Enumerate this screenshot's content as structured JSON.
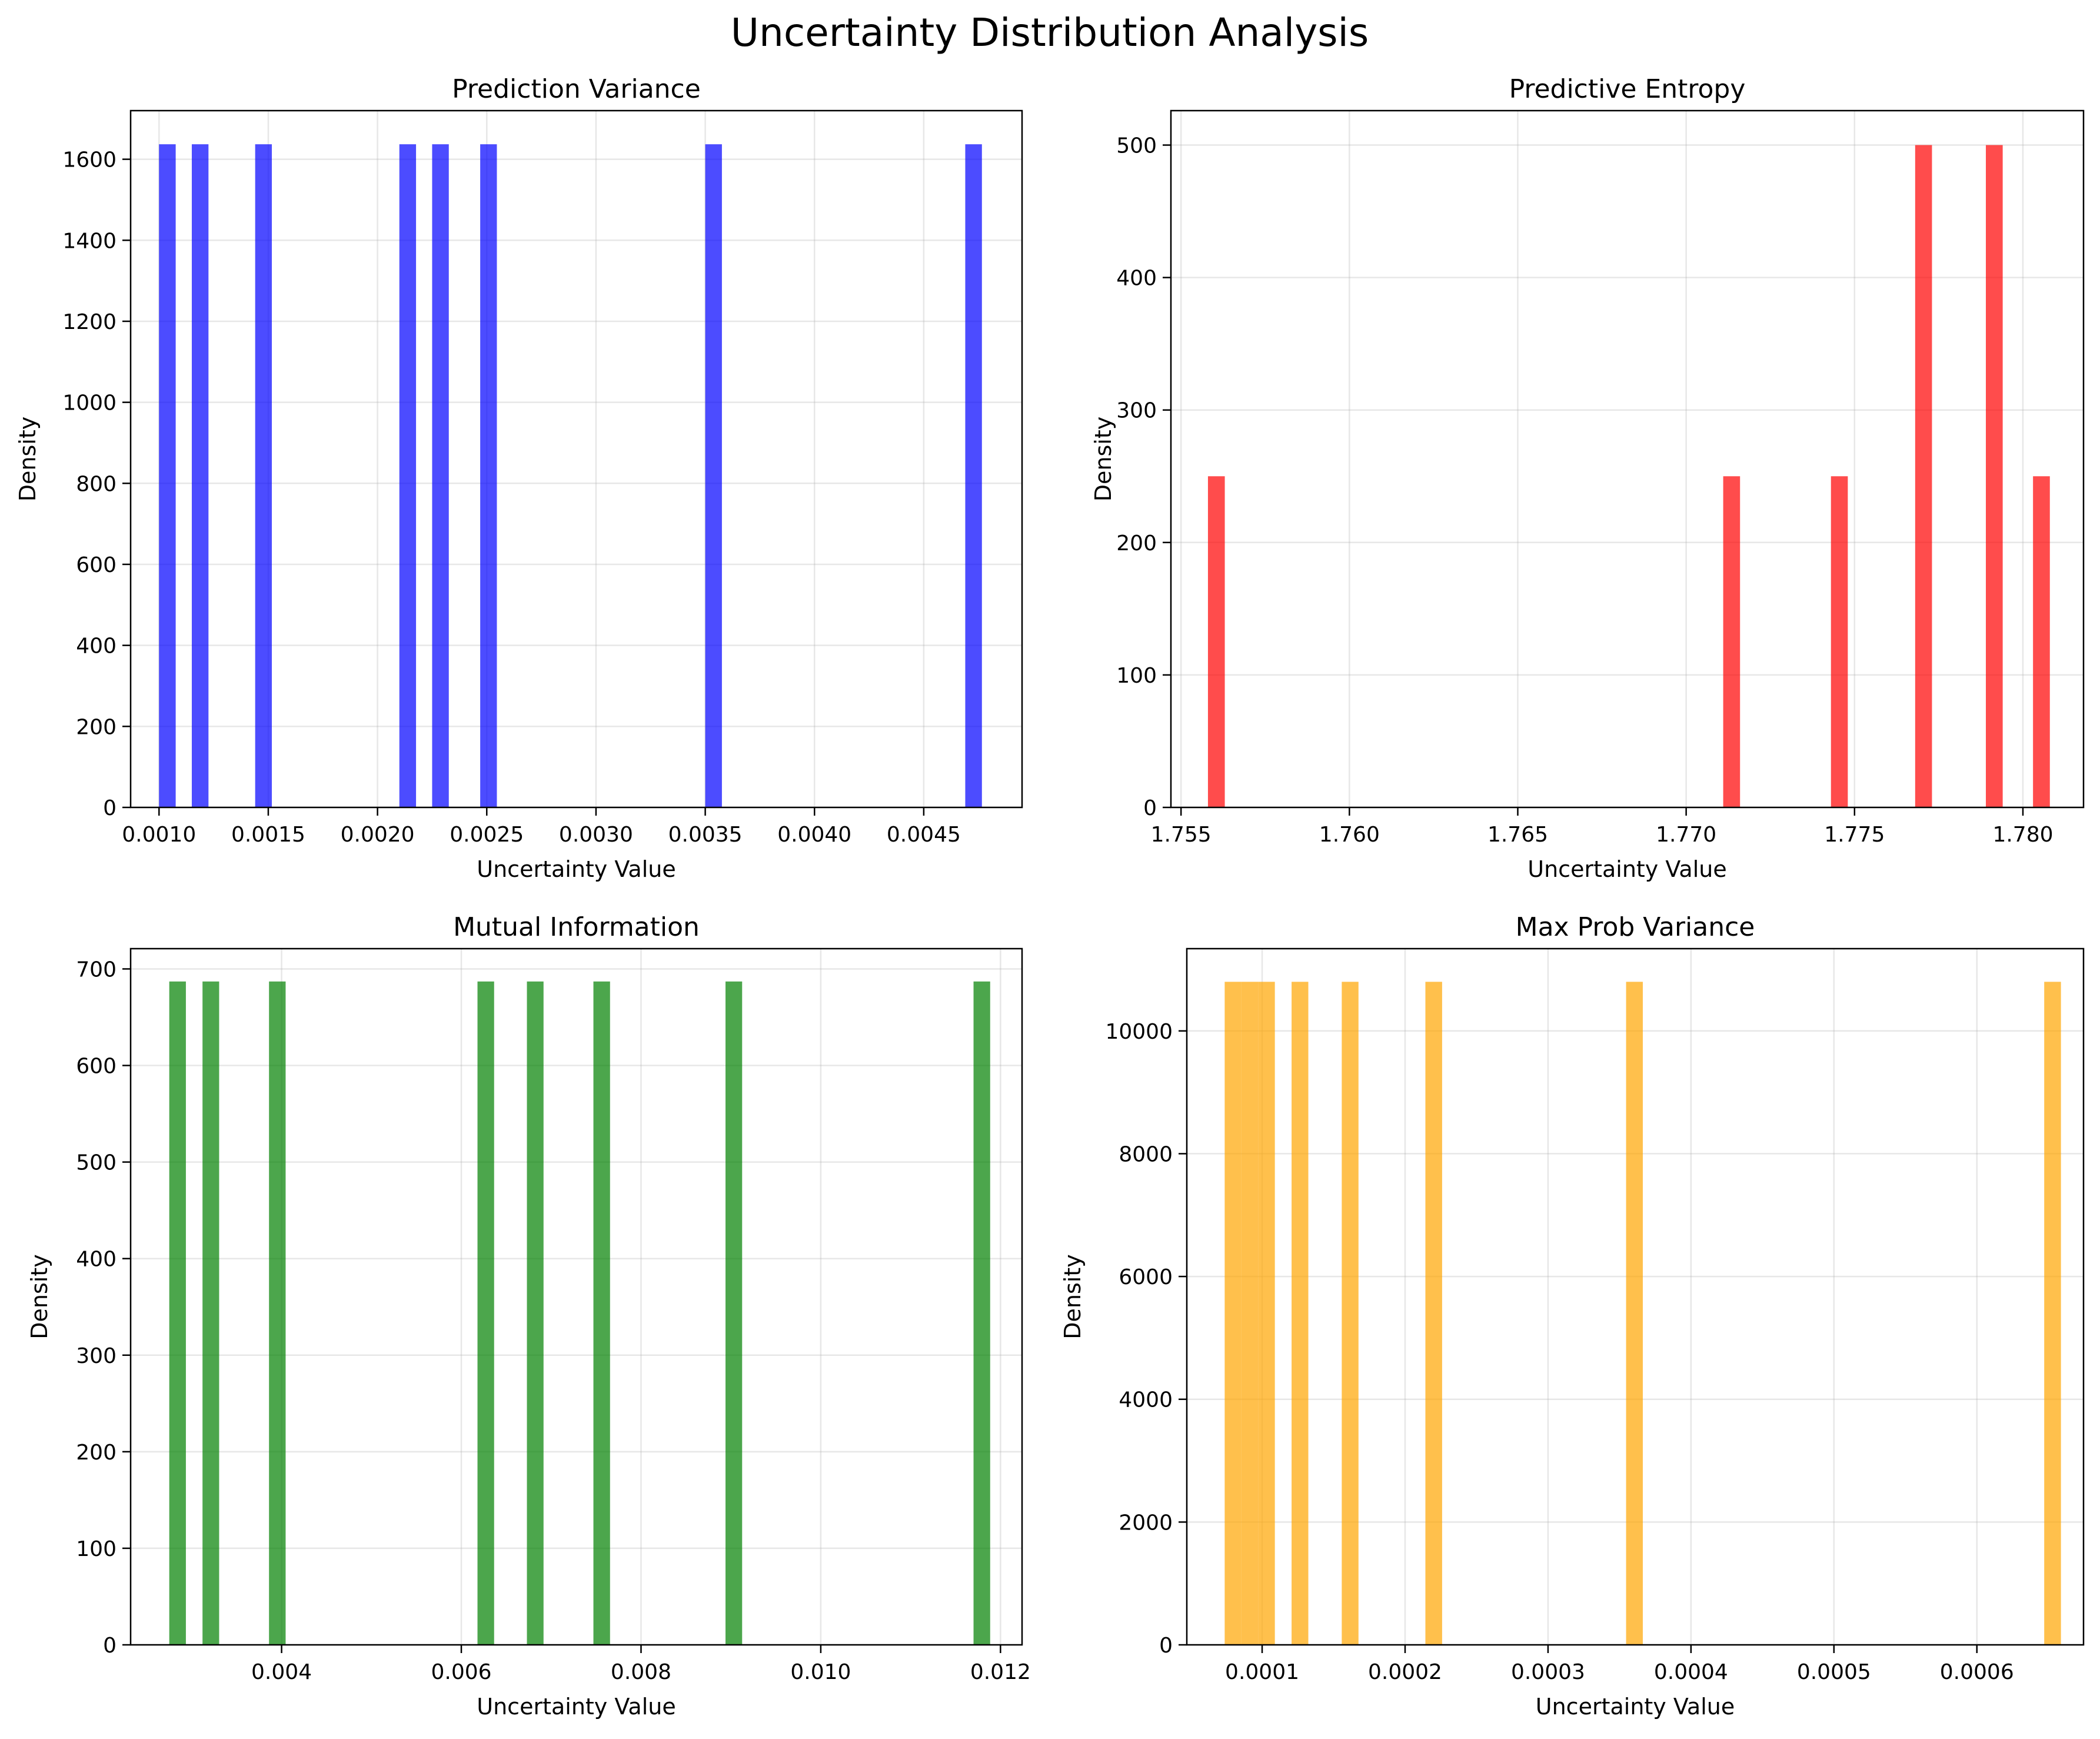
{
  "figure": {
    "suptitle": "Uncertainty Distribution Analysis"
  },
  "chart_data": [
    {
      "type": "bar",
      "title": "Prediction Variance",
      "xlabel": "Uncertainty Value",
      "ylabel": "Density",
      "color": "#0000ff",
      "alpha": 0.7,
      "xlim": [
        0.00087,
        0.00495
      ],
      "ylim": [
        0,
        1720
      ],
      "xticks": [
        0.001,
        0.0015,
        0.002,
        0.0025,
        0.003,
        0.0035,
        0.004,
        0.0045
      ],
      "xtick_labels": [
        "0.0010",
        "0.0015",
        "0.0020",
        "0.0025",
        "0.0030",
        "0.0035",
        "0.0040",
        "0.0045"
      ],
      "yticks": [
        0,
        200,
        400,
        600,
        800,
        1000,
        1200,
        1400,
        1600
      ],
      "yticklabels": [
        "0",
        "200",
        "400",
        "600",
        "800",
        "1000",
        "1200",
        "1400",
        "1600"
      ],
      "bin_width": 7.63e-05,
      "bins": [
        {
          "x": 0.001,
          "value": 1637
        },
        {
          "x": 0.00115,
          "value": 1637
        },
        {
          "x": 0.00144,
          "value": 1637
        },
        {
          "x": 0.0021,
          "value": 1637
        },
        {
          "x": 0.00225,
          "value": 1637
        },
        {
          "x": 0.00247,
          "value": 1637
        },
        {
          "x": 0.0035,
          "value": 1637
        },
        {
          "x": 0.00469,
          "value": 1637
        }
      ],
      "grid": true
    },
    {
      "type": "bar",
      "title": "Predictive Entropy",
      "xlabel": "Uncertainty Value",
      "ylabel": "Density",
      "color": "#ff0000",
      "alpha": 0.7,
      "xlim": [
        1.7547,
        1.7818
      ],
      "ylim": [
        0,
        526
      ],
      "xticks": [
        1.755,
        1.76,
        1.765,
        1.77,
        1.775,
        1.78
      ],
      "xtick_labels": [
        "1.755",
        "1.760",
        "1.765",
        "1.770",
        "1.775",
        "1.780"
      ],
      "yticks": [
        0,
        100,
        200,
        300,
        400,
        500
      ],
      "yticklabels": [
        "0",
        "100",
        "200",
        "300",
        "400",
        "500"
      ],
      "bin_width": 0.0005,
      "bins": [
        {
          "x": 1.7558,
          "value": 250
        },
        {
          "x": 1.7711,
          "value": 250
        },
        {
          "x": 1.7743,
          "value": 250
        },
        {
          "x": 1.7768,
          "value": 500
        },
        {
          "x": 1.7789,
          "value": 500
        },
        {
          "x": 1.7803,
          "value": 250
        }
      ],
      "grid": true
    },
    {
      "type": "bar",
      "title": "Mutual Information",
      "xlabel": "Uncertainty Value",
      "ylabel": "Density",
      "color": "#008000",
      "alpha": 0.7,
      "xlim": [
        0.00232,
        0.01224
      ],
      "ylim": [
        0,
        721
      ],
      "xticks": [
        0.004,
        0.006,
        0.008,
        0.01,
        0.012
      ],
      "xtick_labels": [
        "0.004",
        "0.006",
        "0.008",
        "0.010",
        "0.012"
      ],
      "yticks": [
        0,
        100,
        200,
        300,
        400,
        500,
        600,
        700
      ],
      "yticklabels": [
        "0",
        "100",
        "200",
        "300",
        "400",
        "500",
        "600",
        "700"
      ],
      "bin_width": 0.000185,
      "bins": [
        {
          "x": 0.00275,
          "value": 687
        },
        {
          "x": 0.00312,
          "value": 687
        },
        {
          "x": 0.00386,
          "value": 687
        },
        {
          "x": 0.00618,
          "value": 687
        },
        {
          "x": 0.00673,
          "value": 687
        },
        {
          "x": 0.00747,
          "value": 687
        },
        {
          "x": 0.00894,
          "value": 687
        },
        {
          "x": 0.0117,
          "value": 687
        }
      ],
      "grid": true
    },
    {
      "type": "bar",
      "title": "Max Prob Variance",
      "xlabel": "Uncertainty Value",
      "ylabel": "Density",
      "color": "#ffa500",
      "alpha": 0.7,
      "xlim": [
        4.73e-05,
        0.0006746
      ],
      "ylim": [
        0,
        11340
      ],
      "xticks": [
        0.0001,
        0.0002,
        0.0003,
        0.0004,
        0.0005,
        0.0006
      ],
      "xtick_labels": [
        "0.0001",
        "0.0002",
        "0.0003",
        "0.0004",
        "0.0005",
        "0.0006"
      ],
      "yticks": [
        0,
        2000,
        4000,
        6000,
        8000,
        10000
      ],
      "yticklabels": [
        "0",
        "2000",
        "4000",
        "6000",
        "8000",
        "10000"
      ],
      "bin_width": 1.17e-05,
      "bins": [
        {
          "x": 7.38e-05,
          "value": 10800
        },
        {
          "x": 8.55e-05,
          "value": 10800
        },
        {
          "x": 9.72e-05,
          "value": 10800
        },
        {
          "x": 0.0001206,
          "value": 10800
        },
        {
          "x": 0.0001557,
          "value": 10800
        },
        {
          "x": 0.0002142,
          "value": 10800
        },
        {
          "x": 0.0003546,
          "value": 10800
        },
        {
          "x": 0.0006471,
          "value": 10800
        }
      ],
      "grid": true
    }
  ]
}
